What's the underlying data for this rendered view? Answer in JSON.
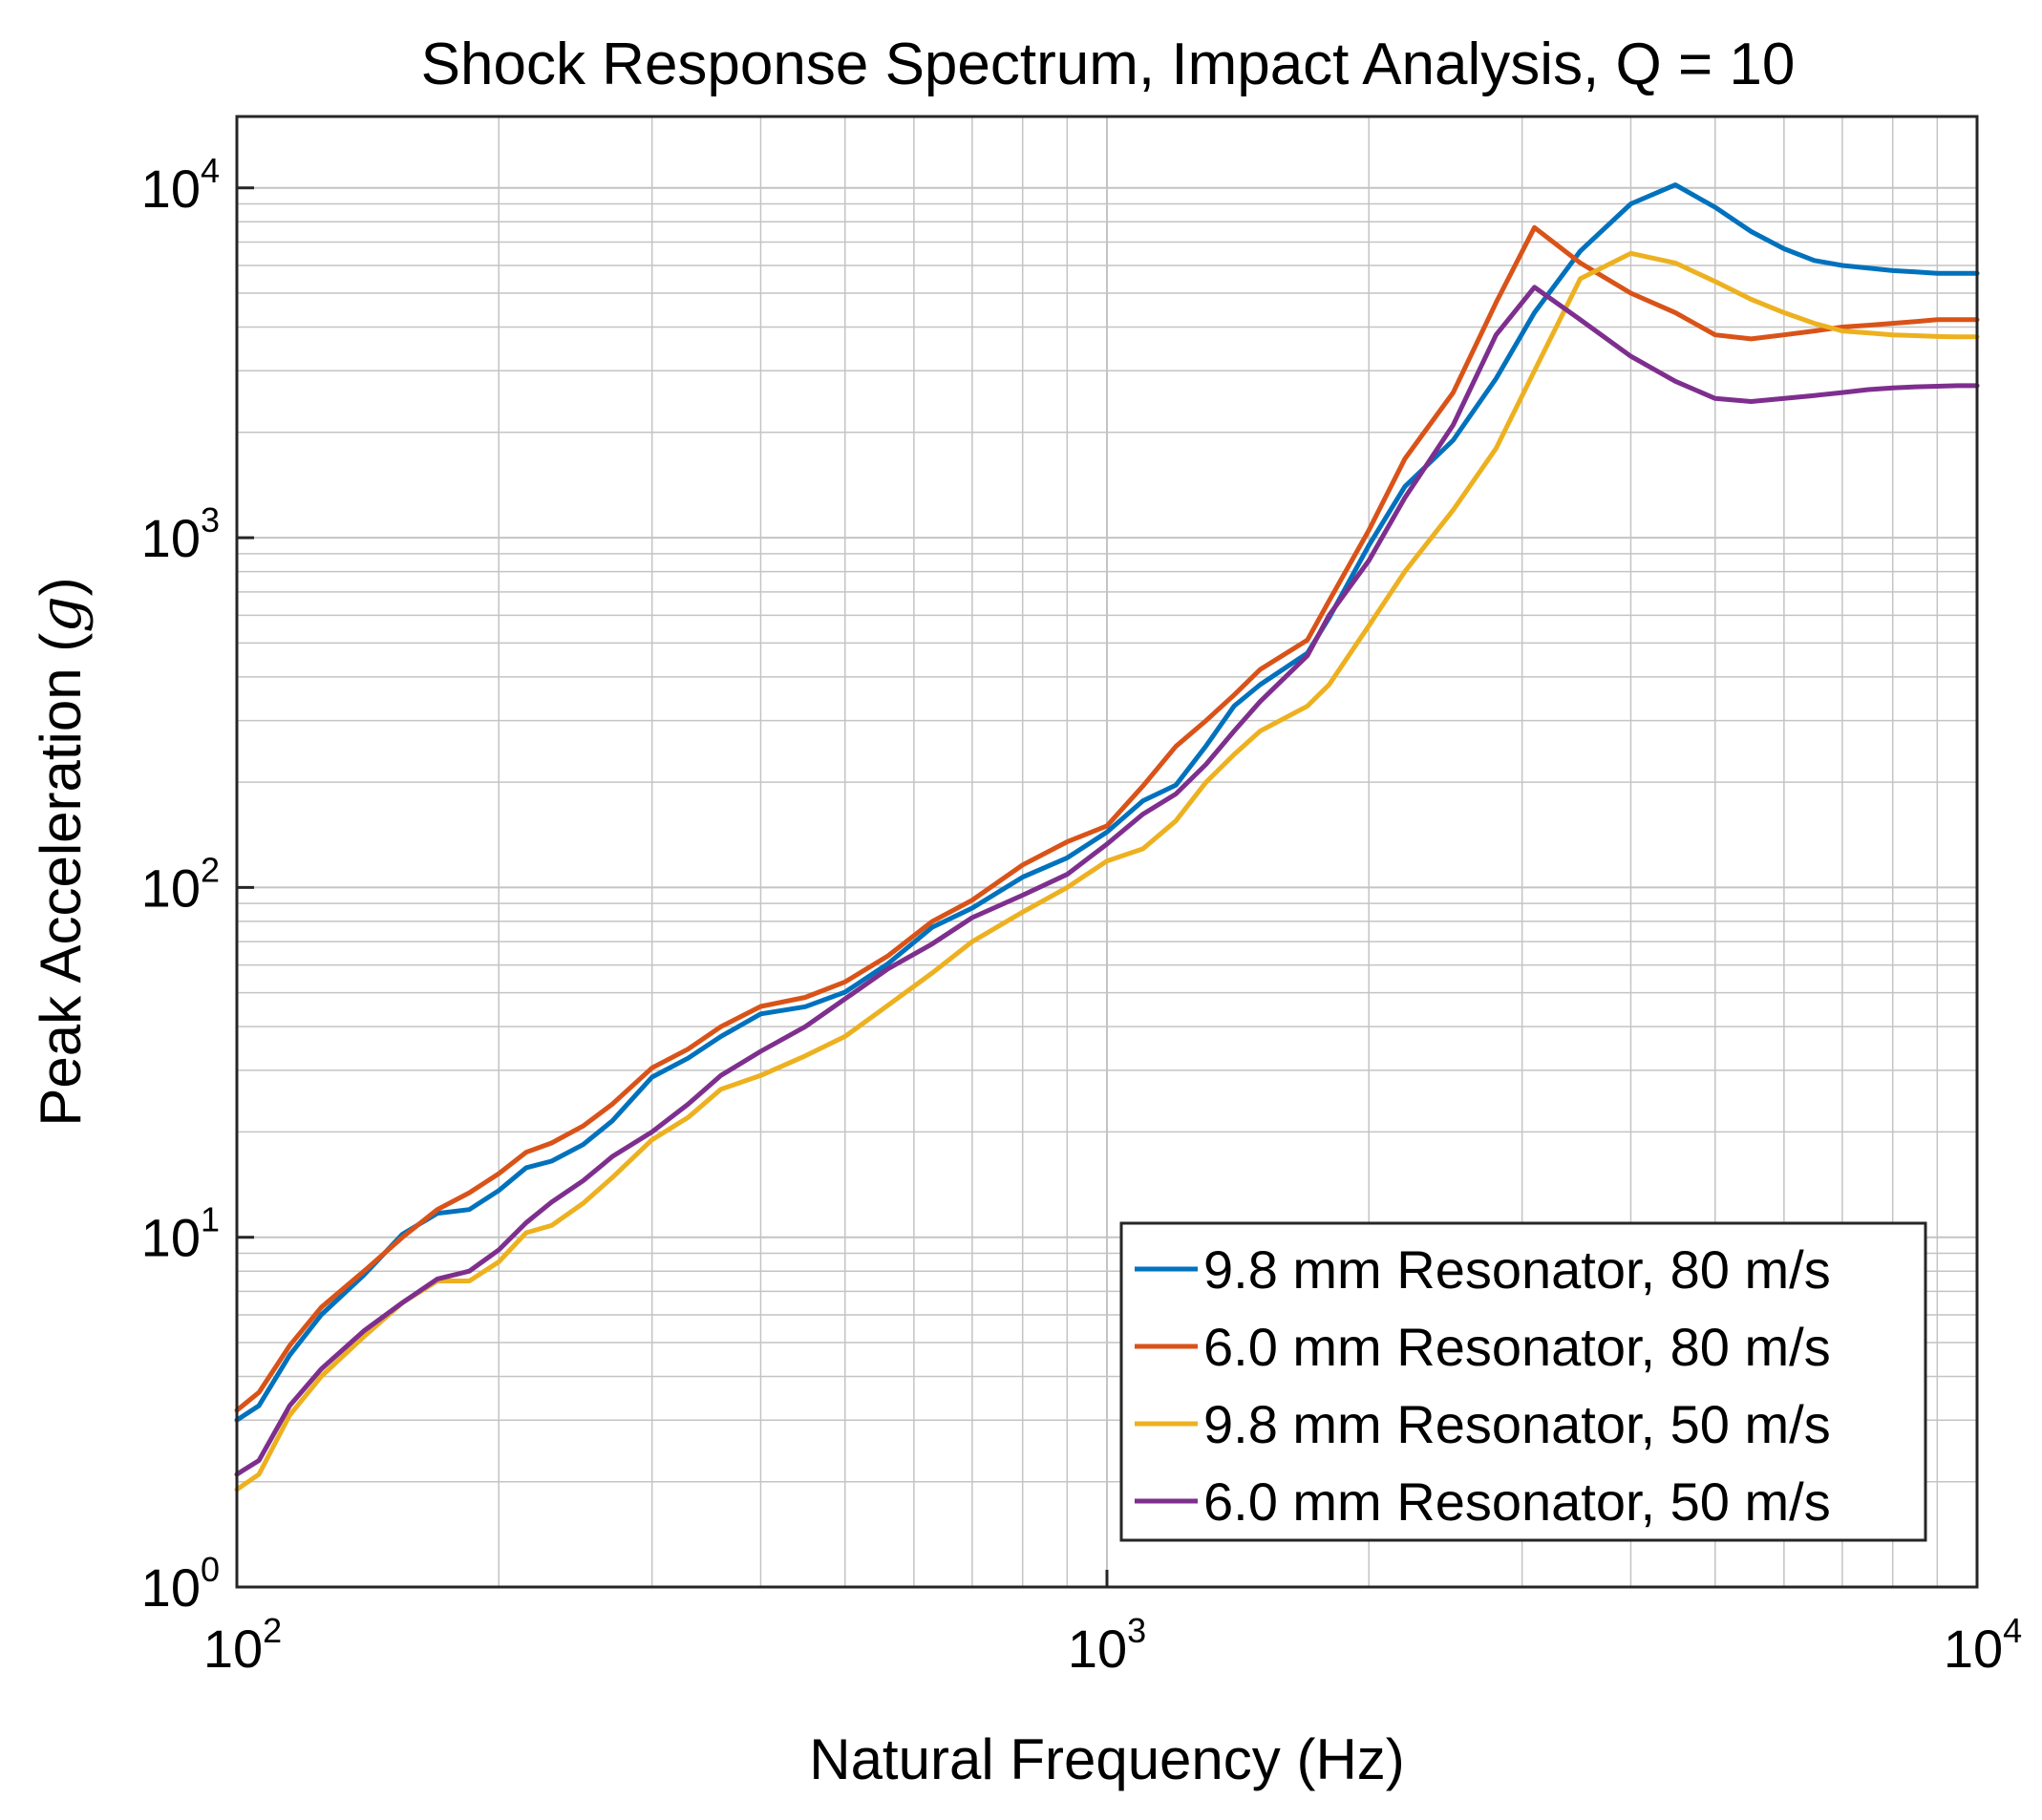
{
  "chart_data": {
    "type": "line",
    "title": "Shock Response Spectrum, Impact Analysis, Q = 10",
    "xlabel": "Natural Frequency (Hz)",
    "ylabel_text": "Peak Acceleration (",
    "ylabel_symbol": "g",
    "ylabel_close": ")",
    "xscale": "log",
    "yscale": "log",
    "xlim": [
      100,
      10000
    ],
    "ylim": [
      1,
      16000
    ],
    "grid": true,
    "legend_location": "bottom-right",
    "x_ticks": [
      {
        "value": 100,
        "base": "10",
        "exp": "2"
      },
      {
        "value": 1000,
        "base": "10",
        "exp": "3"
      },
      {
        "value": 10000,
        "base": "10",
        "exp": "4"
      }
    ],
    "y_ticks": [
      {
        "value": 1,
        "base": "10",
        "exp": "0"
      },
      {
        "value": 10,
        "base": "10",
        "exp": "1"
      },
      {
        "value": 100,
        "base": "10",
        "exp": "2"
      },
      {
        "value": 1000,
        "base": "10",
        "exp": "3"
      },
      {
        "value": 10000,
        "base": "10",
        "exp": "4"
      }
    ],
    "series": [
      {
        "name": "9.8 mm Resonator, 80 m/s",
        "color": "#0072BD",
        "x": [
          100,
          106,
          115,
          125,
          140,
          155,
          170,
          185,
          200,
          215,
          230,
          250,
          270,
          300,
          330,
          360,
          400,
          450,
          500,
          560,
          630,
          700,
          800,
          900,
          1000,
          1100,
          1200,
          1300,
          1400,
          1500,
          1700,
          1800,
          2000,
          2200,
          2500,
          2800,
          3100,
          3500,
          4000,
          4500,
          5000,
          5500,
          6000,
          6500,
          7000,
          7500,
          8000,
          8500,
          9000,
          9500,
          10000
        ],
        "y": [
          3.0,
          3.3,
          4.6,
          6.0,
          7.8,
          10.2,
          11.7,
          12.0,
          13.6,
          15.8,
          16.5,
          18.4,
          21.5,
          28.7,
          32.5,
          37.5,
          43.5,
          45.6,
          50.2,
          60.5,
          77.0,
          87.3,
          107.0,
          121.5,
          144.0,
          177.0,
          196.0,
          254.0,
          330.0,
          380.0,
          468.0,
          590.0,
          950.0,
          1400.0,
          1900.0,
          2850.0,
          4400.0,
          6600.0,
          9000.0,
          10200.0,
          8800.0,
          7500.0,
          6700.0,
          6200.0,
          6000.0,
          5900.0,
          5800.0,
          5750.0,
          5700.0,
          5700.0,
          5700.0
        ]
      },
      {
        "name": "6.0 mm Resonator, 80 m/s",
        "color": "#D95319",
        "x": [
          100,
          106,
          115,
          125,
          140,
          155,
          170,
          185,
          200,
          215,
          230,
          250,
          270,
          300,
          330,
          360,
          400,
          450,
          500,
          560,
          630,
          700,
          800,
          900,
          1000,
          1100,
          1200,
          1300,
          1400,
          1500,
          1700,
          1800,
          2000,
          2200,
          2500,
          2800,
          3100,
          3500,
          4000,
          4500,
          5000,
          5500,
          6000,
          6500,
          7000,
          7500,
          8000,
          8500,
          9000,
          9500,
          10000
        ],
        "y": [
          3.2,
          3.6,
          4.9,
          6.3,
          8.0,
          10.0,
          12.0,
          13.4,
          15.2,
          17.5,
          18.6,
          20.8,
          24.0,
          30.5,
          34.5,
          40.0,
          45.7,
          48.5,
          53.7,
          63.7,
          80.0,
          92.0,
          116.0,
          135.0,
          150.0,
          195.0,
          253.0,
          300.0,
          355.0,
          420.0,
          510.0,
          660.0,
          1050.0,
          1680.0,
          2600.0,
          4700.0,
          7700.0,
          6100.0,
          5000.0,
          4400.0,
          3800.0,
          3700.0,
          3800.0,
          3900.0,
          4000.0,
          4050.0,
          4100.0,
          4150.0,
          4200.0,
          4200.0,
          4200.0
        ]
      },
      {
        "name": "9.8 mm Resonator, 50 m/s",
        "color": "#EDB120",
        "x": [
          100,
          106,
          115,
          125,
          140,
          155,
          170,
          185,
          200,
          215,
          230,
          250,
          270,
          300,
          330,
          360,
          400,
          450,
          500,
          560,
          630,
          700,
          800,
          900,
          1000,
          1100,
          1200,
          1300,
          1400,
          1500,
          1700,
          1800,
          2000,
          2200,
          2500,
          2800,
          3100,
          3500,
          4000,
          4500,
          5000,
          5500,
          6000,
          6500,
          7000,
          7500,
          8000,
          8500,
          9000,
          9500,
          10000
        ],
        "y": [
          1.9,
          2.1,
          3.1,
          4.0,
          5.2,
          6.5,
          7.5,
          7.5,
          8.5,
          10.3,
          10.8,
          12.5,
          14.8,
          19.0,
          22.0,
          26.5,
          29.0,
          33.0,
          37.5,
          46.0,
          57.0,
          70.0,
          85.0,
          100.0,
          119.0,
          129.0,
          155.0,
          200.0,
          240.0,
          280.0,
          330.0,
          380.0,
          560.0,
          800.0,
          1200.0,
          1800.0,
          3000.0,
          5500.0,
          6500.0,
          6100.0,
          5400.0,
          4800.0,
          4400.0,
          4100.0,
          3900.0,
          3850.0,
          3800.0,
          3780.0,
          3760.0,
          3750.0,
          3750.0
        ]
      },
      {
        "name": "6.0 mm Resonator, 50 m/s",
        "color": "#7E2F8E",
        "x": [
          100,
          106,
          115,
          125,
          140,
          155,
          170,
          185,
          200,
          215,
          230,
          250,
          270,
          300,
          330,
          360,
          400,
          450,
          500,
          560,
          630,
          700,
          800,
          900,
          1000,
          1100,
          1200,
          1300,
          1400,
          1500,
          1700,
          1800,
          2000,
          2200,
          2500,
          2800,
          3100,
          3500,
          4000,
          4500,
          5000,
          5500,
          6000,
          6500,
          7000,
          7500,
          8000,
          8500,
          9000,
          9500,
          10000
        ],
        "y": [
          2.1,
          2.3,
          3.3,
          4.2,
          5.4,
          6.5,
          7.6,
          8.0,
          9.2,
          11.0,
          12.6,
          14.5,
          17.0,
          20.0,
          24.0,
          29.0,
          34.0,
          40.0,
          48.0,
          58.5,
          69.0,
          82.0,
          95.0,
          109.0,
          133.0,
          162.0,
          185.0,
          225.0,
          280.0,
          340.0,
          460.0,
          600.0,
          860.0,
          1300.0,
          2100.0,
          3800.0,
          5200.0,
          4200.0,
          3300.0,
          2800.0,
          2500.0,
          2450.0,
          2500.0,
          2550.0,
          2600.0,
          2650.0,
          2680.0,
          2700.0,
          2710.0,
          2720.0,
          2720.0
        ]
      }
    ]
  }
}
